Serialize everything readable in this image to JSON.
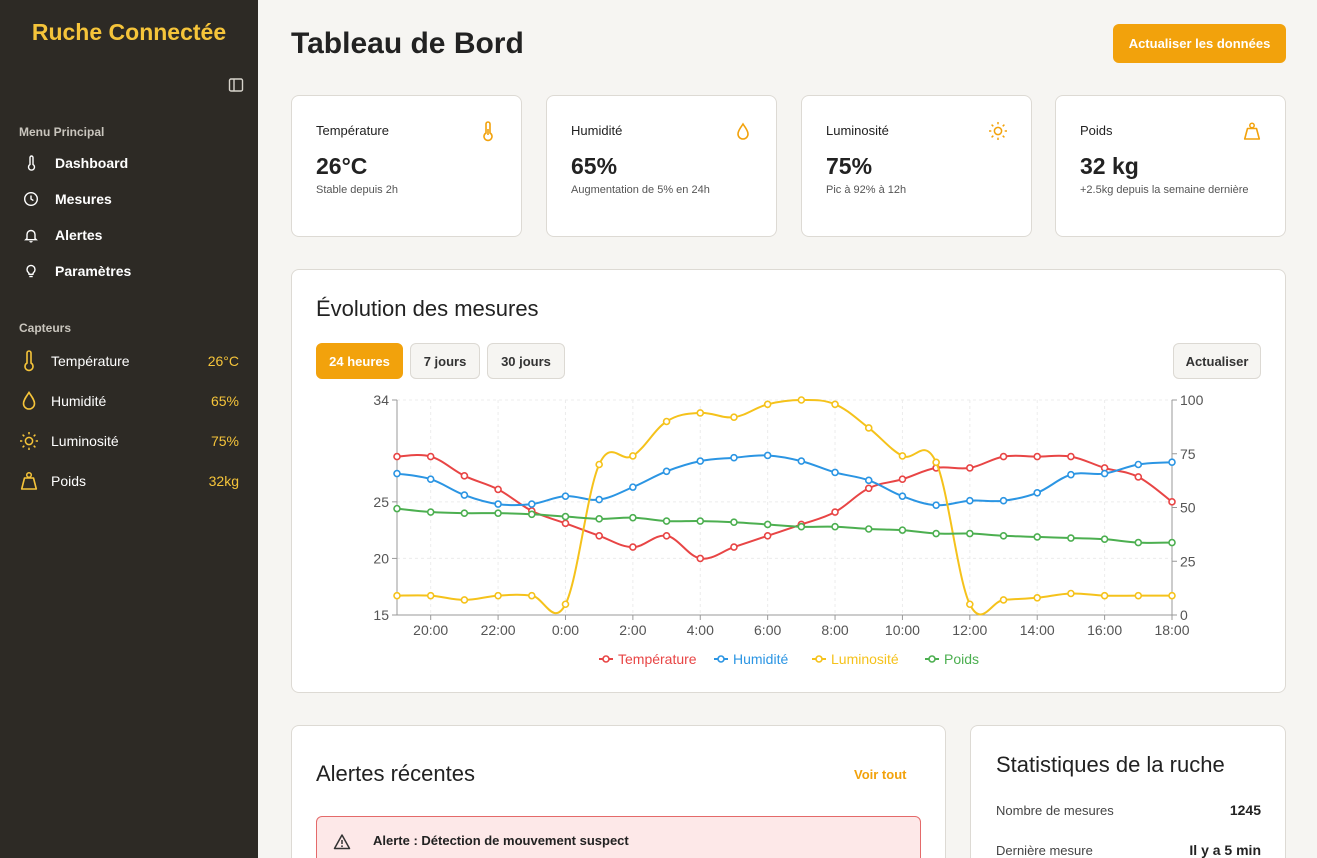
{
  "app": {
    "brand": "Ruche Connectée"
  },
  "sidebar": {
    "menu_title": "Menu Principal",
    "menu": [
      {
        "label": "Dashboard",
        "icon": "thermometer-icon"
      },
      {
        "label": "Mesures",
        "icon": "clock-icon"
      },
      {
        "label": "Alertes",
        "icon": "bell-icon"
      },
      {
        "label": "Paramètres",
        "icon": "lightbulb-icon"
      }
    ],
    "sensors_title": "Capteurs",
    "sensors": [
      {
        "label": "Température",
        "value": "26°C",
        "icon": "thermometer-icon"
      },
      {
        "label": "Humidité",
        "value": "65%",
        "icon": "droplet-icon"
      },
      {
        "label": "Luminosité",
        "value": "75%",
        "icon": "sun-icon"
      },
      {
        "label": "Poids",
        "value": "32kg",
        "icon": "weight-icon"
      }
    ]
  },
  "header": {
    "title": "Tableau de Bord",
    "refresh_label": "Actualiser les données"
  },
  "stat_cards": [
    {
      "label": "Température",
      "value": "26°C",
      "sub": "Stable depuis 2h",
      "icon": "thermometer-icon"
    },
    {
      "label": "Humidité",
      "value": "65%",
      "sub": "Augmentation de 5% en 24h",
      "icon": "droplet-icon"
    },
    {
      "label": "Luminosité",
      "value": "75%",
      "sub": "Pic à 92% à 12h",
      "icon": "sun-icon"
    },
    {
      "label": "Poids",
      "value": "32 kg",
      "sub": "+2.5kg depuis la semaine dernière",
      "icon": "weight-icon"
    }
  ],
  "chart_panel": {
    "title": "Évolution des mesures",
    "tabs": [
      "24 heures",
      "7 jours",
      "30 jours"
    ],
    "active_tab": "24 heures",
    "refresh_label": "Actualiser"
  },
  "chart_data": {
    "type": "line",
    "x_tick_labels": [
      "20:00",
      "22:00",
      "0:00",
      "2:00",
      "4:00",
      "6:00",
      "8:00",
      "10:00",
      "12:00",
      "14:00",
      "16:00",
      "18:00"
    ],
    "x_hours": [
      19,
      20,
      21,
      22,
      23,
      24,
      25,
      26,
      27,
      28,
      29,
      30,
      31,
      32,
      33,
      34,
      35,
      36,
      37,
      38,
      39,
      40,
      41,
      42
    ],
    "y_left": {
      "ticks": [
        "15",
        "20",
        "25",
        "34"
      ],
      "range": [
        15,
        34
      ]
    },
    "y_right": {
      "ticks": [
        "0",
        "25",
        "50",
        "75",
        "100"
      ],
      "range": [
        0,
        100
      ]
    },
    "legend_position": "bottom",
    "grid": true,
    "series": [
      {
        "name": "Température",
        "color": "#e84545",
        "axis": "left",
        "values": [
          29,
          29,
          27.3,
          26.1,
          24.2,
          23.1,
          22,
          21,
          22,
          20,
          21,
          22,
          23,
          24.1,
          26.2,
          27,
          28,
          28,
          29,
          29,
          29,
          28,
          27.2,
          25
        ]
      },
      {
        "name": "Humidité",
        "color": "#2b95e3",
        "axis": "left",
        "values": [
          27.5,
          27,
          25.6,
          24.8,
          24.8,
          25.5,
          25.2,
          26.3,
          27.7,
          28.6,
          28.9,
          29.1,
          28.6,
          27.6,
          26.9,
          25.5,
          24.7,
          25.1,
          25.1,
          25.8,
          27.4,
          27.5,
          28.3,
          28.5
        ]
      },
      {
        "name": "Luminosité",
        "color": "#f5c21b",
        "axis": "right",
        "values": [
          9,
          9,
          7,
          9,
          9,
          5,
          70,
          74,
          90,
          94,
          92,
          98,
          100,
          98,
          87,
          74,
          71,
          5,
          7,
          8,
          10,
          9,
          9,
          9
        ]
      },
      {
        "name": "Poids",
        "color": "#4caf50",
        "axis": "left",
        "values": [
          24.4,
          24.1,
          24,
          24,
          23.9,
          23.7,
          23.5,
          23.6,
          23.3,
          23.3,
          23.2,
          23,
          22.8,
          22.8,
          22.6,
          22.5,
          22.2,
          22.2,
          22,
          21.9,
          21.8,
          21.7,
          21.4,
          21.4
        ]
      }
    ]
  },
  "alerts": {
    "title": "Alertes récentes",
    "see_all": "Voir tout",
    "items": [
      {
        "text": "Alerte : Détection de mouvement suspect",
        "icon": "warning-icon"
      }
    ]
  },
  "stats": {
    "title": "Statistiques de la ruche",
    "rows": [
      {
        "key": "Nombre de mesures",
        "value": "1245"
      },
      {
        "key": "Dernière mesure",
        "value": "Il y a 5 min"
      }
    ]
  },
  "colors": {
    "accent": "#f2a20c",
    "accent_light": "#f5c43a",
    "sidebar_bg": "#2d2a25",
    "alert_bg": "#fde8e8",
    "alert_border": "#e46a6a"
  }
}
